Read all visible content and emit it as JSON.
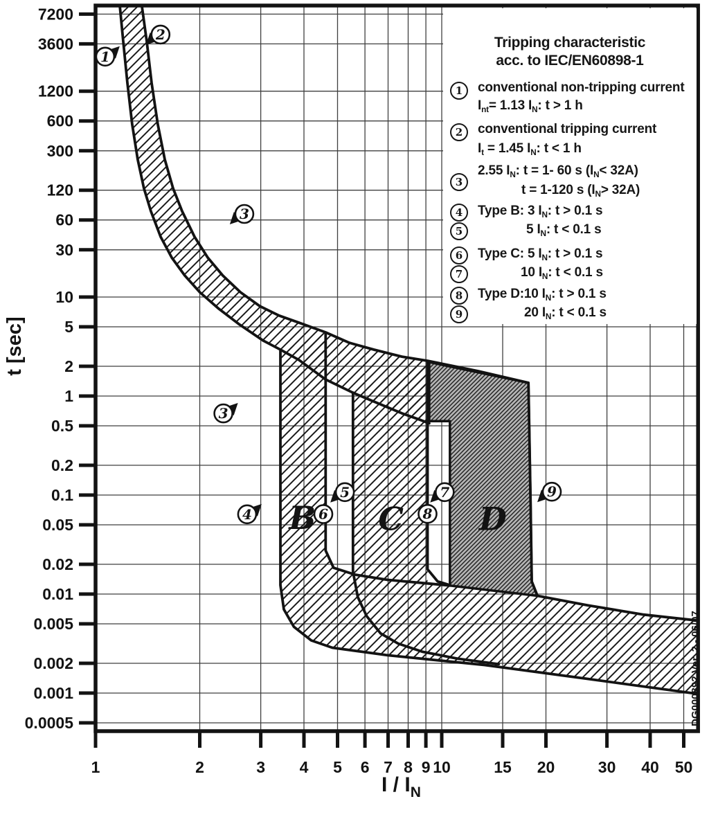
{
  "colors": {
    "ink": "#131313",
    "grid": "#3f3f3f",
    "band_hatch": "#1a1a1a",
    "d_fill": "#b4b4b4",
    "background": "#ffffff"
  },
  "axes": {
    "y_title": "t [sec]",
    "x_title_main": "I / I",
    "x_title_sub": "N"
  },
  "footer_note": "DG000892 Ver. 2 - 06/07",
  "legend": {
    "title1": "Tripping characteristic",
    "title2": "acc. to IEC/EN60898-1",
    "items": [
      {
        "num": "1",
        "lines": [
          {
            "text": "conventional non-tripping current",
            "indent": 50,
            "top": 104
          },
          {
            "text": "I~nt~= 1.13 I~N~: t > 1 h",
            "indent": 50,
            "top": 130
          }
        ],
        "circ_top": 106
      },
      {
        "num": "2",
        "lines": [
          {
            "text": "conventional tripping current",
            "indent": 50,
            "top": 164
          },
          {
            "text": "I~t~ = 1.45 I~N~: t < 1 h",
            "indent": 50,
            "top": 192
          }
        ],
        "circ_top": 166
      },
      {
        "num": "3",
        "lines": [
          {
            "text": "2.55 I~N~: t = 1- 60 s (I~N~< 32A)",
            "indent": 50,
            "top": 224
          },
          {
            "text": "t = 1-120 s (I~N~> 32A)",
            "indent": 113,
            "top": 252
          }
        ],
        "circ_top": 238
      },
      {
        "num": "4",
        "lines": [
          {
            "text": "Type B: 3 I~N~: t > 0.1 s",
            "indent": 50,
            "top": 282
          }
        ],
        "circ_top": 282
      },
      {
        "num": "5",
        "lines": [
          {
            "text": "5 I~N~: t < 0.1 s",
            "indent": 120,
            "top": 309
          }
        ],
        "circ_top": 309
      },
      {
        "num": "6",
        "lines": [
          {
            "text": "Type C: 5 I~N~: t > 0.1 s",
            "indent": 50,
            "top": 344
          }
        ],
        "circ_top": 344
      },
      {
        "num": "7",
        "lines": [
          {
            "text": "10 I~N~: t < 0.1 s",
            "indent": 112,
            "top": 371
          }
        ],
        "circ_top": 371
      },
      {
        "num": "8",
        "lines": [
          {
            "text": "Type D:10 I~N~: t > 0.1 s",
            "indent": 50,
            "top": 402
          }
        ],
        "circ_top": 402
      },
      {
        "num": "9",
        "lines": [
          {
            "text": "20 I~N~: t < 0.1 s",
            "indent": 117,
            "top": 429
          }
        ],
        "circ_top": 429
      }
    ]
  },
  "chart_data": {
    "type": "area",
    "title": "Tripping characteristic acc. to IEC/EN60898-1",
    "xlabel": "I / IN",
    "ylabel": "t [sec]",
    "x_scale": "log",
    "y_scale": "log",
    "xlim": [
      1,
      55
    ],
    "ylim": [
      0.00041,
      8800
    ],
    "grid": true,
    "x_ticks": {
      "values": [
        1,
        2,
        3,
        4,
        5,
        6,
        7,
        8,
        9,
        10,
        15,
        20,
        30,
        40,
        50
      ],
      "labels": [
        "1",
        "2",
        "3",
        "4",
        "5",
        "6",
        "7",
        "8",
        "9",
        "10",
        "15",
        "20",
        "30",
        "40",
        "50"
      ]
    },
    "y_ticks": {
      "values": [
        7200,
        3600,
        1200,
        600,
        300,
        120,
        60,
        30,
        10,
        5,
        2,
        1,
        0.5,
        0.2,
        0.1,
        0.05,
        0.02,
        0.01,
        0.005,
        0.002,
        0.001,
        0.0005
      ],
      "labels": [
        "7200",
        "3600",
        "1200",
        "600",
        "300",
        "120",
        "60",
        "30",
        "10",
        "5",
        "2",
        "1",
        "0.5",
        "0.2",
        "0.1",
        "0.05",
        "0.02",
        "0.01",
        "0.005",
        "0.002",
        "0.001",
        "0.0005"
      ]
    },
    "nominal_limits": {
      "conventional_non_tripping_current": 1.13,
      "conventional_tripping_current": 1.45,
      "thermal_test": {
        "multiple": 2.55,
        "t_range_below_32A": [
          1,
          60
        ],
        "t_range_above_32A": [
          1,
          120
        ]
      },
      "type_B_magnetic_range": [
        3,
        5
      ],
      "type_C_magnetic_range": [
        5,
        10
      ],
      "type_D_magnetic_range": [
        10,
        20
      ],
      "instantaneous_threshold_s": 0.1
    },
    "regions": [
      {
        "name": "thermal-band",
        "fill": "light",
        "points": [
          [
            1.36,
            8800
          ],
          [
            1.406,
            3800
          ],
          [
            1.452,
            1450
          ],
          [
            1.513,
            555
          ],
          [
            1.585,
            245
          ],
          [
            1.675,
            125
          ],
          [
            1.778,
            73.6
          ],
          [
            1.932,
            40.6
          ],
          [
            2.11,
            25
          ],
          [
            2.33,
            16.5
          ],
          [
            2.62,
            11.2
          ],
          [
            2.98,
            8.1
          ],
          [
            3.39,
            6.5
          ],
          [
            3.87,
            5.5
          ],
          [
            4.62,
            4.4
          ],
          [
            5.41,
            3.45
          ],
          [
            6.37,
            2.94
          ],
          [
            7.67,
            2.5
          ],
          [
            9.1,
            2.27
          ],
          [
            9.2,
            2.2
          ],
          [
            9.2,
            0.53
          ],
          [
            8.6,
            0.58
          ],
          [
            7.67,
            0.67
          ],
          [
            6.52,
            0.85
          ],
          [
            5.54,
            1.08
          ],
          [
            4.62,
            1.47
          ],
          [
            3.87,
            2.31
          ],
          [
            3.42,
            2.94
          ],
          [
            3.05,
            3.63
          ],
          [
            2.59,
            5.35
          ],
          [
            2.26,
            7.7
          ],
          [
            2.0,
            11.2
          ],
          [
            1.81,
            16.5
          ],
          [
            1.66,
            25
          ],
          [
            1.542,
            40.6
          ],
          [
            1.445,
            73.6
          ],
          [
            1.38,
            125
          ],
          [
            1.324,
            245
          ],
          [
            1.276,
            555
          ],
          [
            1.236,
            1450
          ],
          [
            1.202,
            3800
          ],
          [
            1.175,
            8800
          ]
        ]
      },
      {
        "name": "type-c-band",
        "fill": "light",
        "points": [
          [
            5.54,
            1.08
          ],
          [
            9.1,
            2.24
          ],
          [
            9.1,
            0.0124
          ],
          [
            5.54,
            0.0124
          ]
        ]
      },
      {
        "name": "type-b-band-and-instantaneous-strip",
        "fill": "light",
        "points": [
          [
            3.42,
            2.85
          ],
          [
            4.62,
            4.26
          ],
          [
            4.62,
            0.0275
          ],
          [
            4.87,
            0.0184
          ],
          [
            5.62,
            0.0157
          ],
          [
            6.98,
            0.0139
          ],
          [
            9.1,
            0.0128
          ],
          [
            10.56,
            0.0122
          ],
          [
            18.9,
            0.0096
          ],
          [
            26.4,
            0.0077
          ],
          [
            38.3,
            0.0062
          ],
          [
            55,
            0.0054
          ],
          [
            55,
            0.00098
          ],
          [
            26.4,
            0.00139
          ],
          [
            13.3,
            0.00192
          ],
          [
            6.98,
            0.00241
          ],
          [
            4.83,
            0.00287
          ],
          [
            4.2,
            0.0034
          ],
          [
            3.74,
            0.00468
          ],
          [
            3.5,
            0.00699
          ],
          [
            3.42,
            0.0123
          ]
        ]
      },
      {
        "name": "type-d-band",
        "fill": "dark",
        "stroke": true,
        "points": [
          [
            9.2,
            2.2
          ],
          [
            17.8,
            1.36
          ],
          [
            18.05,
            0.0924
          ],
          [
            18.2,
            0.0134
          ],
          [
            18.9,
            0.0096
          ],
          [
            10.56,
            0.0122
          ],
          [
            10.56,
            0.557
          ],
          [
            9.2,
            0.557
          ]
        ]
      }
    ],
    "boundary_lines": [
      {
        "name": "upper-boundary-curve",
        "points": [
          [
            1.36,
            8800
          ],
          [
            1.406,
            3800
          ],
          [
            1.452,
            1450
          ],
          [
            1.513,
            555
          ],
          [
            1.585,
            245
          ],
          [
            1.675,
            125
          ],
          [
            1.778,
            73.6
          ],
          [
            1.932,
            40.6
          ],
          [
            2.11,
            25
          ],
          [
            2.33,
            16.5
          ],
          [
            2.62,
            11.2
          ],
          [
            2.98,
            8.1
          ],
          [
            3.39,
            6.5
          ],
          [
            3.87,
            5.5
          ],
          [
            4.62,
            4.4
          ],
          [
            5.41,
            3.45
          ],
          [
            6.37,
            2.94
          ],
          [
            7.67,
            2.5
          ],
          [
            9.1,
            2.27
          ],
          [
            12.7,
            1.79
          ],
          [
            17.8,
            1.36
          ],
          [
            18.05,
            0.0924
          ],
          [
            18.2,
            0.0134
          ],
          [
            18.9,
            0.0096
          ],
          [
            26.4,
            0.0077
          ],
          [
            38.3,
            0.0062
          ],
          [
            55,
            0.0054
          ]
        ]
      },
      {
        "name": "lower-boundary-curve",
        "points": [
          [
            1.175,
            8800
          ],
          [
            1.202,
            3800
          ],
          [
            1.236,
            1450
          ],
          [
            1.276,
            555
          ],
          [
            1.324,
            245
          ],
          [
            1.38,
            125
          ],
          [
            1.445,
            73.6
          ],
          [
            1.542,
            40.6
          ],
          [
            1.66,
            25
          ],
          [
            1.81,
            16.5
          ],
          [
            2.0,
            11.2
          ],
          [
            2.26,
            7.7
          ],
          [
            2.59,
            5.35
          ],
          [
            3.05,
            3.63
          ],
          [
            3.42,
            2.94
          ],
          [
            3.87,
            2.31
          ],
          [
            4.62,
            1.47
          ],
          [
            5.54,
            1.08
          ],
          [
            6.52,
            0.85
          ],
          [
            7.67,
            0.67
          ],
          [
            8.6,
            0.58
          ],
          [
            9.2,
            0.53
          ]
        ]
      },
      {
        "name": "type-b-lower-limit",
        "points": [
          [
            3.42,
            2.85
          ],
          [
            3.42,
            0.0123
          ],
          [
            3.5,
            0.00699
          ],
          [
            3.74,
            0.00468
          ],
          [
            4.2,
            0.0034
          ],
          [
            4.83,
            0.00287
          ],
          [
            6.98,
            0.00241
          ],
          [
            13.3,
            0.00192
          ],
          [
            26.4,
            0.00139
          ],
          [
            55,
            0.00098
          ]
        ]
      },
      {
        "name": "type-b-upper-limit",
        "points": [
          [
            4.62,
            4.26
          ],
          [
            4.62,
            0.0275
          ],
          [
            4.87,
            0.0184
          ],
          [
            5.62,
            0.0157
          ],
          [
            6.98,
            0.0139
          ],
          [
            9.1,
            0.0128
          ],
          [
            10.56,
            0.0122
          ]
        ]
      },
      {
        "name": "type-c-lower-limit",
        "points": [
          [
            5.54,
            1.08
          ],
          [
            5.54,
            0.0169
          ],
          [
            5.72,
            0.00935
          ],
          [
            6.07,
            0.00598
          ],
          [
            6.66,
            0.00401
          ],
          [
            7.48,
            0.00316
          ],
          [
            8.78,
            0.00262
          ],
          [
            11.1,
            0.00223
          ],
          [
            14.6,
            0.00196
          ]
        ]
      },
      {
        "name": "type-c-upper-limit",
        "points": [
          [
            9.1,
            2.24
          ],
          [
            9.1,
            0.0178
          ],
          [
            9.73,
            0.0134
          ],
          [
            10.4,
            0.0125
          ]
        ]
      }
    ],
    "markers": [
      {
        "label": "1",
        "I": 1.066,
        "t": 2680,
        "pointer": "up-right"
      },
      {
        "label": "2",
        "I": 1.54,
        "t": 4480,
        "pointer": "down-left"
      },
      {
        "label": "3",
        "I": 2.69,
        "t": 69,
        "pointer": "down-left"
      },
      {
        "label": "3",
        "I": 2.34,
        "t": 0.668,
        "pointer": "up-right"
      },
      {
        "label": "4",
        "I": 2.74,
        "t": 0.0639,
        "pointer": "up-right"
      },
      {
        "label": "5",
        "I": 5.25,
        "t": 0.107,
        "pointer": "down-left"
      },
      {
        "label": "6",
        "I": 4.55,
        "t": 0.0642,
        "pointer": "none"
      },
      {
        "label": "7",
        "I": 10.2,
        "t": 0.107,
        "pointer": "down-left"
      },
      {
        "label": "8",
        "I": 9.1,
        "t": 0.0645,
        "pointer": "none"
      },
      {
        "label": "9",
        "I": 20.8,
        "t": 0.108,
        "pointer": "down-left"
      }
    ],
    "region_labels": [
      {
        "text": "B",
        "I": 3.96,
        "t": 0.059
      },
      {
        "text": "C",
        "I": 7.13,
        "t": 0.0573
      },
      {
        "text": "D",
        "I": 14.05,
        "t": 0.0573
      }
    ]
  }
}
